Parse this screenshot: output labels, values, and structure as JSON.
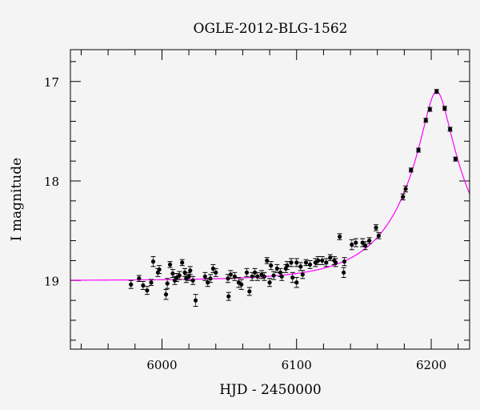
{
  "chart_data": {
    "type": "scatter",
    "title": "OGLE-2012-BLG-1562",
    "xlabel": "HJD - 2450000",
    "ylabel": "I magnitude",
    "xlim": [
      5932,
      6228.5
    ],
    "ylim": [
      19.69,
      16.68
    ],
    "y_inverted": true,
    "x_ticks": [
      "6000",
      "6100",
      "6200"
    ],
    "x_tick_values": [
      6000,
      6100,
      6200
    ],
    "x_minor_step": 20,
    "y_ticks": [
      "17",
      "18",
      "19"
    ],
    "y_tick_values": [
      17,
      18,
      19
    ],
    "y_minor_step": 0.2,
    "grid": false,
    "colors": {
      "points": "#000000",
      "errorbars": "#000000",
      "model": "#ff00ff",
      "background": "#f4f4f4"
    },
    "model": {
      "type": "paczynski",
      "t0": 6204,
      "u0": 0.176,
      "tE": 54,
      "baseline_mag": 19.0
    },
    "points": {
      "x": [
        5977,
        5983,
        5986,
        5989,
        5992,
        5993.5,
        5997,
        5998,
        6003,
        6004,
        6006,
        6008,
        6009.5,
        6011,
        6013,
        6015,
        6017,
        6018,
        6020,
        6021,
        6023,
        6025,
        6032,
        6034,
        6036,
        6038,
        6040,
        6049,
        6049.5,
        6051,
        6054,
        6057,
        6059,
        6063,
        6065,
        6067,
        6069,
        6071,
        6074,
        6076,
        6078,
        6080,
        6081,
        6083,
        6085.5,
        6088,
        6089,
        6092,
        6093,
        6096,
        6097,
        6100,
        6100,
        6103,
        6104.5,
        6107,
        6110,
        6114,
        6116,
        6119,
        6122,
        6125,
        6128,
        6129,
        6132,
        6135,
        6135.5,
        6141,
        6144,
        6149,
        6151,
        6154,
        6159,
        6161,
        6179,
        6181,
        6185,
        6190.5,
        6196,
        6199,
        6204,
        6210,
        6214,
        6218
      ],
      "mag": [
        19.04,
        18.98,
        19.05,
        19.1,
        19.02,
        18.81,
        18.92,
        18.89,
        19.14,
        19.03,
        18.84,
        18.93,
        19.0,
        18.97,
        18.95,
        18.82,
        18.92,
        18.98,
        18.96,
        18.9,
        19.0,
        19.2,
        18.96,
        19.02,
        18.98,
        18.88,
        18.92,
        18.98,
        19.16,
        18.94,
        18.96,
        19.02,
        19.04,
        18.92,
        19.11,
        18.96,
        18.92,
        18.96,
        18.94,
        18.96,
        18.8,
        19.02,
        18.85,
        18.95,
        18.88,
        18.92,
        18.96,
        18.88,
        18.85,
        18.82,
        18.97,
        18.82,
        19.02,
        18.86,
        18.94,
        18.82,
        18.84,
        18.82,
        18.8,
        18.8,
        18.82,
        18.77,
        18.8,
        18.82,
        18.56,
        18.92,
        18.81,
        18.64,
        18.62,
        18.62,
        18.65,
        18.6,
        18.47,
        18.55,
        18.16,
        18.08,
        17.89,
        17.69,
        17.39,
        17.28,
        17.1,
        17.27,
        17.48,
        17.78
      ],
      "err": [
        0.04,
        0.03,
        0.04,
        0.04,
        0.03,
        0.05,
        0.04,
        0.04,
        0.05,
        0.05,
        0.03,
        0.04,
        0.04,
        0.04,
        0.04,
        0.03,
        0.04,
        0.04,
        0.04,
        0.04,
        0.04,
        0.06,
        0.04,
        0.04,
        0.04,
        0.04,
        0.04,
        0.04,
        0.04,
        0.04,
        0.04,
        0.05,
        0.05,
        0.04,
        0.04,
        0.04,
        0.04,
        0.04,
        0.04,
        0.04,
        0.03,
        0.04,
        0.04,
        0.04,
        0.04,
        0.04,
        0.04,
        0.04,
        0.04,
        0.04,
        0.05,
        0.04,
        0.05,
        0.04,
        0.04,
        0.03,
        0.04,
        0.04,
        0.04,
        0.04,
        0.04,
        0.03,
        0.04,
        0.04,
        0.03,
        0.05,
        0.04,
        0.05,
        0.04,
        0.04,
        0.04,
        0.03,
        0.03,
        0.03,
        0.03,
        0.03,
        0.02,
        0.02,
        0.02,
        0.02,
        0.02,
        0.02,
        0.02,
        0.02
      ]
    }
  }
}
